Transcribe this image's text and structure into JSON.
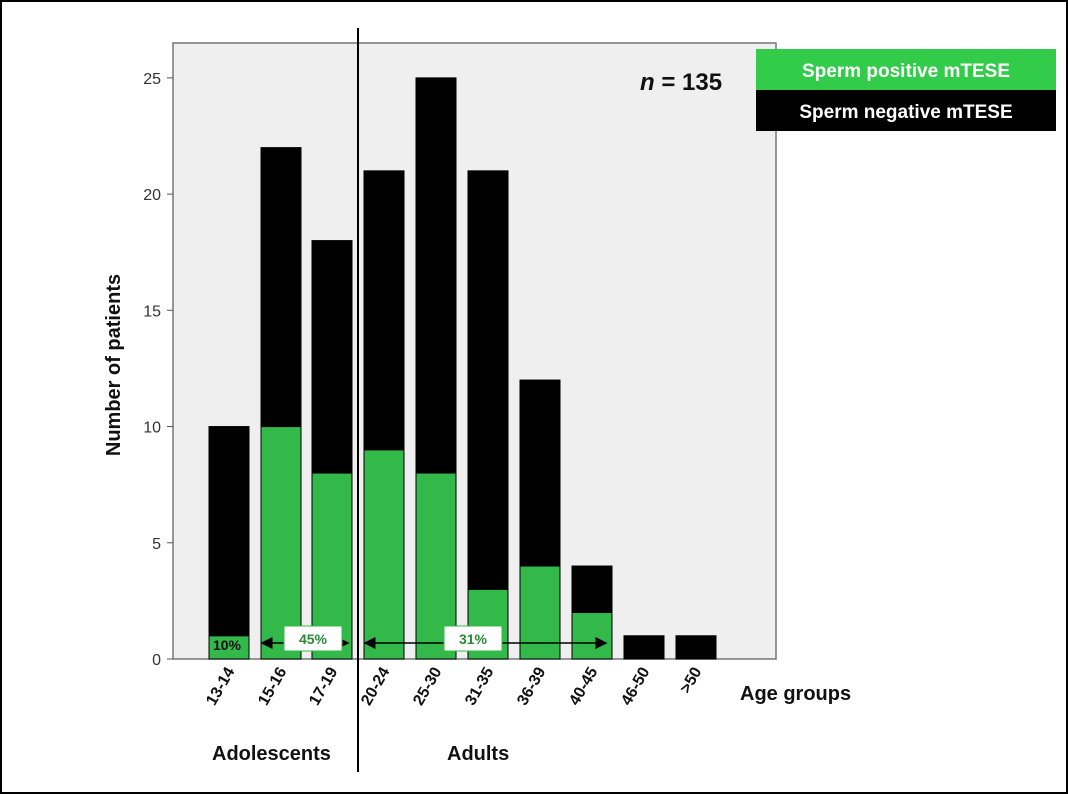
{
  "chart_data": {
    "type": "bar",
    "stacked": true,
    "categories": [
      "13-14",
      "15-16",
      "17-19",
      "20-24",
      "25-30",
      "31-35",
      "36-39",
      "40-45",
      "46-50",
      ">50"
    ],
    "series": [
      {
        "name": "Sperm positive mTESE",
        "color": "#33b84a",
        "values": [
          1,
          10,
          8,
          9,
          8,
          3,
          4,
          2,
          0,
          0
        ]
      },
      {
        "name": "Sperm negative mTESE",
        "color": "#000000",
        "values": [
          9,
          12,
          10,
          12,
          17,
          18,
          8,
          2,
          1,
          1
        ]
      }
    ],
    "ylabel": "Number of patients",
    "xlabel": "Age groups",
    "ylim": [
      0,
      26.5
    ],
    "yticks": [
      0,
      5,
      10,
      15,
      20,
      25
    ],
    "legend_position": "top-right",
    "annotation_n": {
      "italic": "n",
      "text": " = 135"
    },
    "group_labels": {
      "left": "Adolescents",
      "right": "Adults"
    },
    "percent_labels": [
      {
        "text": "10%",
        "group": "13-14"
      },
      {
        "text": "45%",
        "group": "15-16 to 17-19"
      },
      {
        "text": "31%",
        "group": "20-24 to 40-45"
      }
    ],
    "plot_background": "#efefef"
  }
}
